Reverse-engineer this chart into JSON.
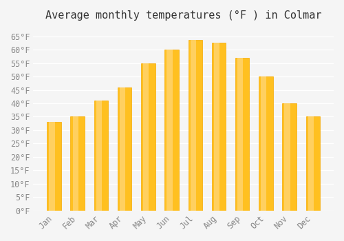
{
  "months": [
    "Jan",
    "Feb",
    "Mar",
    "Apr",
    "May",
    "Jun",
    "Jul",
    "Aug",
    "Sep",
    "Oct",
    "Nov",
    "Dec"
  ],
  "values": [
    33,
    35,
    41,
    46,
    55,
    60,
    63.5,
    62.5,
    57,
    50,
    40,
    35
  ],
  "bar_color_face": "#FFC020",
  "bar_color_edge": "#F5A800",
  "bar_color_highlight": "#FFD060",
  "title": "Average monthly temperatures (°F ) in Colmar",
  "ylim": [
    0,
    68
  ],
  "ytick_step": 5,
  "background_color": "#f5f5f5",
  "grid_color": "#ffffff",
  "title_fontsize": 11,
  "tick_fontsize": 8.5,
  "font_family": "monospace"
}
